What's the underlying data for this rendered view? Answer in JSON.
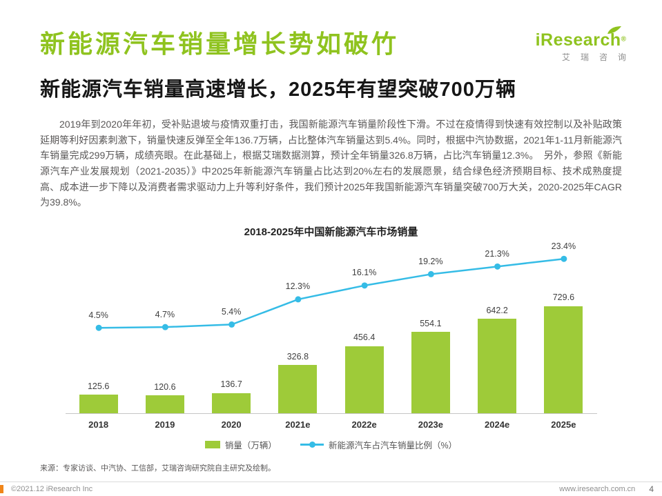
{
  "page": {
    "title": "新能源汽车销量增长势如破竹",
    "subtitle": "新能源汽车销量高速增长，2025年有望突破700万辆",
    "paragraph": "2019年到2020年年初，受补贴退坡与疫情双重打击，我国新能源汽车销量阶段性下滑。不过在疫情得到快速有效控制以及补贴政策延期等利好因素刺激下，销量快速反弹至全年136.7万辆，占比整体汽车销量达到5.4%。同时，根据中汽协数据，2021年1-11月新能源汽车销量完成299万辆，成绩亮眼。在此基础上，根据艾瑞数据测算，预计全年销量326.8万辆，占比汽车销量12.3%。　另外，参照《新能源汽车产业发展规划（2021-2035）》中2025年新能源汽车销量占比达到20%左右的发展愿景，结合绿色经济预期目标、技术成熟度提高、成本进一步下降以及消费者需求驱动力上升等利好条件，我们预计2025年我国新能源汽车销量突破700万大关，2020-2025年CAGR为39.8%。"
  },
  "logo": {
    "brand": "iResearch",
    "registered": "®",
    "subtext": "艾瑞咨询"
  },
  "chart_data": {
    "type": "bar+line",
    "title": "2018-2025年中国新能源汽车市场销量",
    "categories": [
      "2018",
      "2019",
      "2020",
      "2021e",
      "2022e",
      "2023e",
      "2024e",
      "2025e"
    ],
    "series": [
      {
        "name": "销量（万辆）",
        "type": "bar",
        "values": [
          125.6,
          120.6,
          136.7,
          326.8,
          456.4,
          554.1,
          642.2,
          729.6
        ],
        "color": "#9ECB39"
      },
      {
        "name": "新能源汽车占汽车销量比例（%）",
        "type": "line",
        "values": [
          4.5,
          4.7,
          5.4,
          12.3,
          16.1,
          19.2,
          21.3,
          23.4
        ],
        "color": "#35BCE6"
      }
    ],
    "bar_ylim": [
      0,
      800
    ],
    "line_ylim": [
      0,
      30
    ],
    "grid": false,
    "legend_position": "bottom"
  },
  "source_note": "来源：专家访谈、中汽协、工信部，艾瑞咨询研究院自主研究及绘制。",
  "footer": {
    "left": "©2021.12 iResearch Inc",
    "right": "www.iresearch.com.cn",
    "page_number": "4"
  },
  "colors": {
    "accent_green": "#8FC31F",
    "bar_green": "#9ECB39",
    "line_blue": "#35BCE6",
    "footer_orange": "#F08519"
  }
}
